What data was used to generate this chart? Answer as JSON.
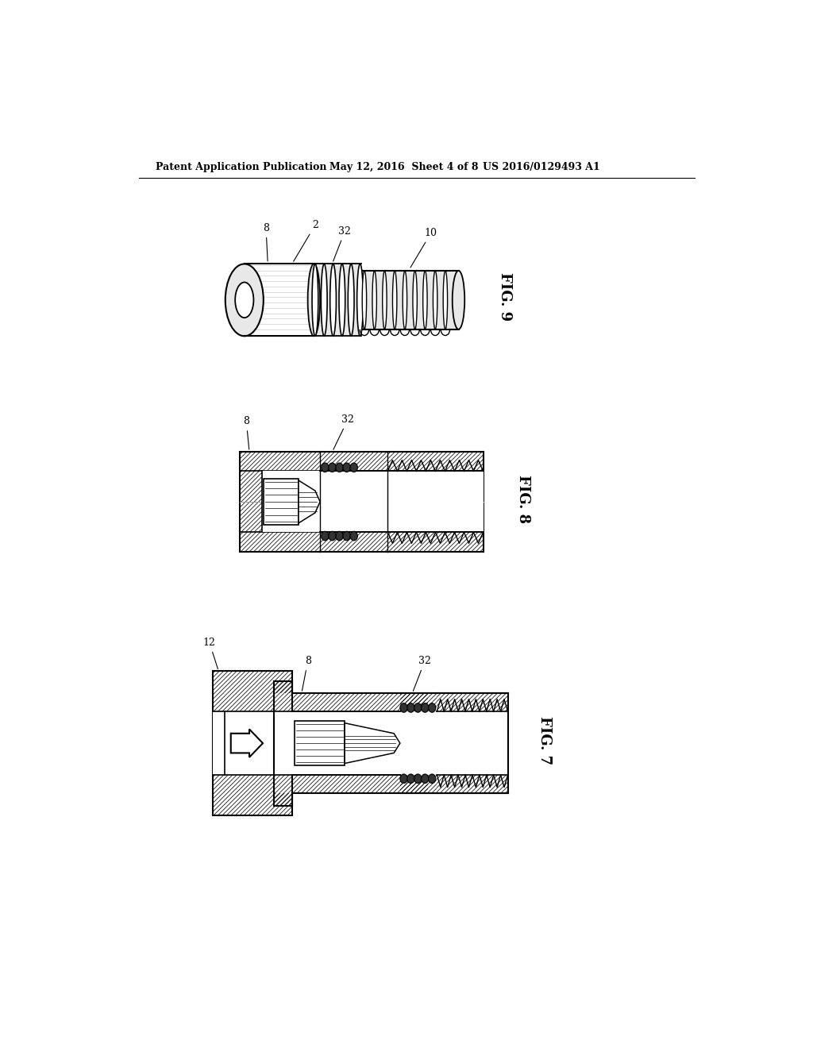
{
  "bg_color": "#ffffff",
  "text_color": "#000000",
  "header_left": "Patent Application Publication",
  "header_center": "May 12, 2016  Sheet 4 of 8",
  "header_right": "US 2016/0129493 A1",
  "fig9_label": "FIG. 9",
  "fig8_label": "FIG. 8",
  "fig7_label": "FIG. 7"
}
